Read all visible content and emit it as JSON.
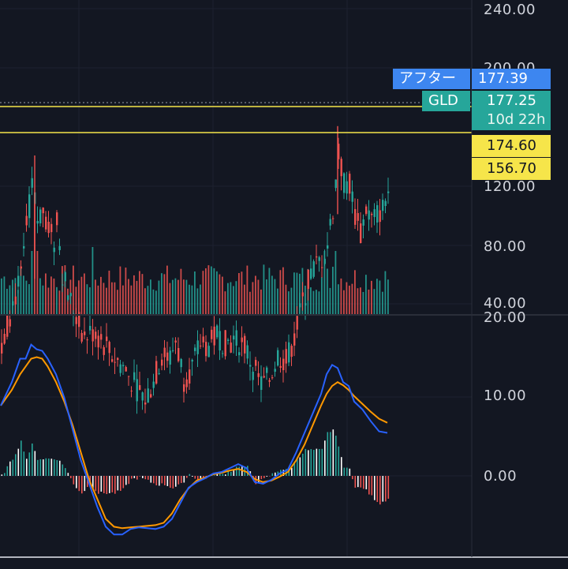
{
  "chart_data": [
    {
      "type": "candlestick",
      "symbol": "GLD",
      "y_ticks": [
        "240.00",
        "200.00",
        "120.00",
        "80.00",
        "40.00"
      ],
      "ylim": [
        15,
        250
      ],
      "last_price": 177.25,
      "after_hours_price": 177.39,
      "horizontal_lines": [
        174.6,
        156.7
      ],
      "dotted_line": 177.39,
      "volume_bars": 140,
      "close_shape": [
        [
          0,
          124
        ],
        [
          4,
          140
        ],
        [
          7,
          148
        ],
        [
          9,
          165
        ],
        [
          11,
          180
        ],
        [
          13,
          168
        ],
        [
          15,
          172
        ],
        [
          17,
          166
        ],
        [
          19,
          160
        ],
        [
          20,
          170
        ],
        [
          22,
          150
        ],
        [
          25,
          140
        ],
        [
          27,
          135
        ],
        [
          30,
          128
        ],
        [
          33,
          130
        ],
        [
          36,
          127
        ],
        [
          40,
          122
        ],
        [
          44,
          118
        ],
        [
          48,
          112
        ],
        [
          52,
          107
        ],
        [
          55,
          113
        ],
        [
          58,
          122
        ],
        [
          61,
          121
        ],
        [
          63,
          127
        ],
        [
          66,
          114
        ],
        [
          69,
          118
        ],
        [
          72,
          126
        ],
        [
          75,
          125
        ],
        [
          78,
          129
        ],
        [
          81,
          126
        ],
        [
          85,
          127
        ],
        [
          88,
          125
        ],
        [
          91,
          118
        ],
        [
          94,
          112
        ],
        [
          97,
          114
        ],
        [
          100,
          122
        ],
        [
          103,
          120
        ],
        [
          106,
          128
        ],
        [
          109,
          140
        ],
        [
          112,
          150
        ],
        [
          116,
          155
        ],
        [
          118,
          160
        ],
        [
          120,
          172
        ],
        [
          122,
          190
        ],
        [
          124,
          181
        ],
        [
          126,
          180
        ],
        [
          128,
          170
        ],
        [
          130,
          163
        ],
        [
          132,
          172
        ],
        [
          134,
          168
        ],
        [
          136,
          170
        ],
        [
          138,
          172
        ],
        [
          140,
          178
        ]
      ]
    },
    {
      "type": "macd",
      "y_ticks": [
        "20.00",
        "10.00",
        "0.00"
      ],
      "ylim": [
        -12,
        21
      ],
      "macd_line": [
        [
          0,
          9
        ],
        [
          4,
          12
        ],
        [
          7,
          15
        ],
        [
          9,
          15
        ],
        [
          11,
          16.8
        ],
        [
          13,
          16.2
        ],
        [
          15,
          16
        ],
        [
          17,
          15
        ],
        [
          20,
          13
        ],
        [
          23,
          10
        ],
        [
          26,
          6
        ],
        [
          29,
          2
        ],
        [
          32,
          -1
        ],
        [
          35,
          -4
        ],
        [
          38,
          -6.5
        ],
        [
          41,
          -7.5
        ],
        [
          44,
          -7.5
        ],
        [
          47,
          -6.8
        ],
        [
          50,
          -6.6
        ],
        [
          53,
          -6.7
        ],
        [
          56,
          -6.8
        ],
        [
          59,
          -6.5
        ],
        [
          62,
          -5.5
        ],
        [
          65,
          -3.5
        ],
        [
          68,
          -1.5
        ],
        [
          71,
          -0.8
        ],
        [
          74,
          -0.3
        ],
        [
          77,
          0.3
        ],
        [
          80,
          0.5
        ],
        [
          83,
          1
        ],
        [
          86,
          1.5
        ],
        [
          89,
          1
        ],
        [
          92,
          -0.8
        ],
        [
          95,
          -1
        ],
        [
          98,
          -0.5
        ],
        [
          101,
          0.3
        ],
        [
          104,
          0.8
        ],
        [
          107,
          3
        ],
        [
          110,
          5.5
        ],
        [
          113,
          8
        ],
        [
          116,
          10.5
        ],
        [
          118,
          13
        ],
        [
          120,
          14.2
        ],
        [
          122,
          13.8
        ],
        [
          124,
          12
        ],
        [
          126,
          11.5
        ],
        [
          128,
          9.5
        ],
        [
          131,
          8.5
        ],
        [
          134,
          7
        ],
        [
          137,
          5.7
        ],
        [
          140,
          5.5
        ]
      ],
      "signal_line": [
        [
          0,
          9
        ],
        [
          4,
          11
        ],
        [
          7,
          13
        ],
        [
          9,
          14
        ],
        [
          11,
          15
        ],
        [
          13,
          15.2
        ],
        [
          15,
          15
        ],
        [
          17,
          14
        ],
        [
          20,
          12
        ],
        [
          23,
          9.5
        ],
        [
          26,
          6.5
        ],
        [
          29,
          3
        ],
        [
          32,
          -0.5
        ],
        [
          35,
          -3
        ],
        [
          38,
          -5.5
        ],
        [
          41,
          -6.5
        ],
        [
          44,
          -6.7
        ],
        [
          47,
          -6.6
        ],
        [
          50,
          -6.5
        ],
        [
          53,
          -6.4
        ],
        [
          56,
          -6.3
        ],
        [
          59,
          -6
        ],
        [
          62,
          -4.8
        ],
        [
          65,
          -3
        ],
        [
          68,
          -1.6
        ],
        [
          71,
          -0.6
        ],
        [
          74,
          -0.2
        ],
        [
          77,
          0.2
        ],
        [
          80,
          0.4
        ],
        [
          83,
          0.7
        ],
        [
          86,
          0.9
        ],
        [
          89,
          0.5
        ],
        [
          92,
          -0.4
        ],
        [
          95,
          -0.8
        ],
        [
          98,
          -0.6
        ],
        [
          101,
          -0.1
        ],
        [
          104,
          0.5
        ],
        [
          107,
          2
        ],
        [
          110,
          4
        ],
        [
          113,
          6.5
        ],
        [
          116,
          9
        ],
        [
          118,
          10.5
        ],
        [
          120,
          11.5
        ],
        [
          122,
          12
        ],
        [
          124,
          11.6
        ],
        [
          126,
          11
        ],
        [
          128,
          10.2
        ],
        [
          131,
          9.2
        ],
        [
          134,
          8.2
        ],
        [
          137,
          7.3
        ],
        [
          140,
          6.8
        ]
      ],
      "colors": {
        "macd": "#2962ff",
        "signal": "#ff9800",
        "hist_pos": "#26a69a",
        "hist_neg": "#ef5350"
      }
    }
  ],
  "tags": {
    "after_label": "アフター",
    "after_value": "177.39",
    "symbol": "GLD",
    "price": "177.25",
    "countdown": "10d 22h",
    "level_1": "174.60",
    "level_2": "156.70"
  },
  "colors": {
    "background": "#131722",
    "up": "#26a69a",
    "down": "#ef5350",
    "after_tag": "#3d86f0",
    "symbol_tag": "#26a69a",
    "level_tag": "#f6e54a",
    "grid": "#1e2230",
    "axis_text": "#d1d4dc"
  }
}
